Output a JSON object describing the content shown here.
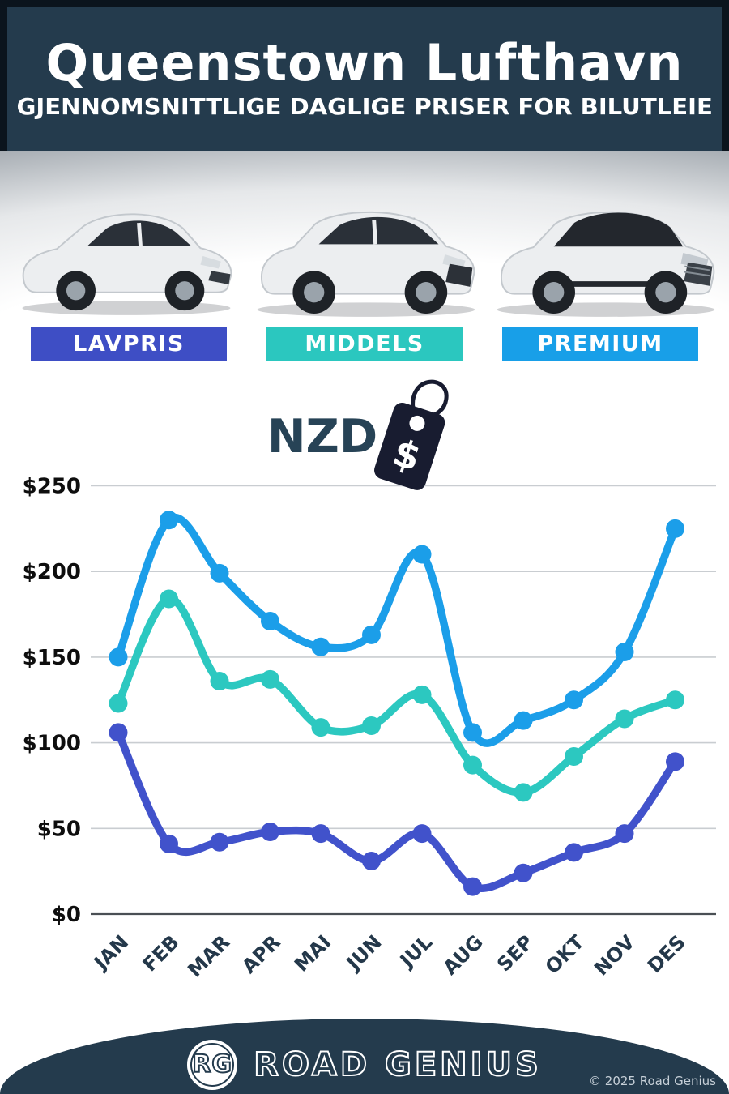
{
  "header": {
    "title": "Queenstown Lufthavn",
    "subtitle": "GJENNOMSNITTLIGE DAGLIGE PRISER FOR BILUTLEIE"
  },
  "categories": [
    {
      "label": "LAVPRIS",
      "color": "#3e4ec5",
      "car": "compact-hatchback"
    },
    {
      "label": "MIDDELS",
      "color": "#2bc7bf",
      "car": "midsize-suv"
    },
    {
      "label": "PREMIUM",
      "color": "#189fe8",
      "car": "premium-suv"
    }
  ],
  "currency": {
    "code": "NZD",
    "tag_symbol": "$"
  },
  "chart_data": {
    "type": "line",
    "categories": [
      "JAN",
      "FEB",
      "MAR",
      "APR",
      "MAI",
      "JUN",
      "JUL",
      "AUG",
      "SEP",
      "OKT",
      "NOV",
      "DES"
    ],
    "series": [
      {
        "name": "PREMIUM",
        "color": "#1b9ee9",
        "values": [
          150,
          230,
          199,
          171,
          156,
          163,
          210,
          106,
          113,
          125,
          153,
          225
        ]
      },
      {
        "name": "MIDDELS",
        "color": "#2cc8c0",
        "values": [
          123,
          184,
          136,
          137,
          109,
          110,
          128,
          87,
          71,
          92,
          114,
          125
        ]
      },
      {
        "name": "LAVPRIS",
        "color": "#4152cb",
        "values": [
          106,
          41,
          42,
          48,
          47,
          31,
          47,
          16,
          24,
          36,
          47,
          89
        ]
      }
    ],
    "ylabel": "NZD $",
    "ylim": [
      0,
      250
    ],
    "y_ticks": [
      {
        "value": 0,
        "label": "$0"
      },
      {
        "value": 50,
        "label": "$50"
      },
      {
        "value": 100,
        "label": "$100"
      },
      {
        "value": 150,
        "label": "$150"
      },
      {
        "value": 200,
        "label": "$200"
      },
      {
        "value": 250,
        "label": "$250"
      }
    ],
    "grid": true,
    "legend_position": "category-boxes-above-chart"
  },
  "footer": {
    "logo_monogram": "RG",
    "brand": "ROAD GENIUS",
    "copyright": "© 2025 Road Genius"
  }
}
